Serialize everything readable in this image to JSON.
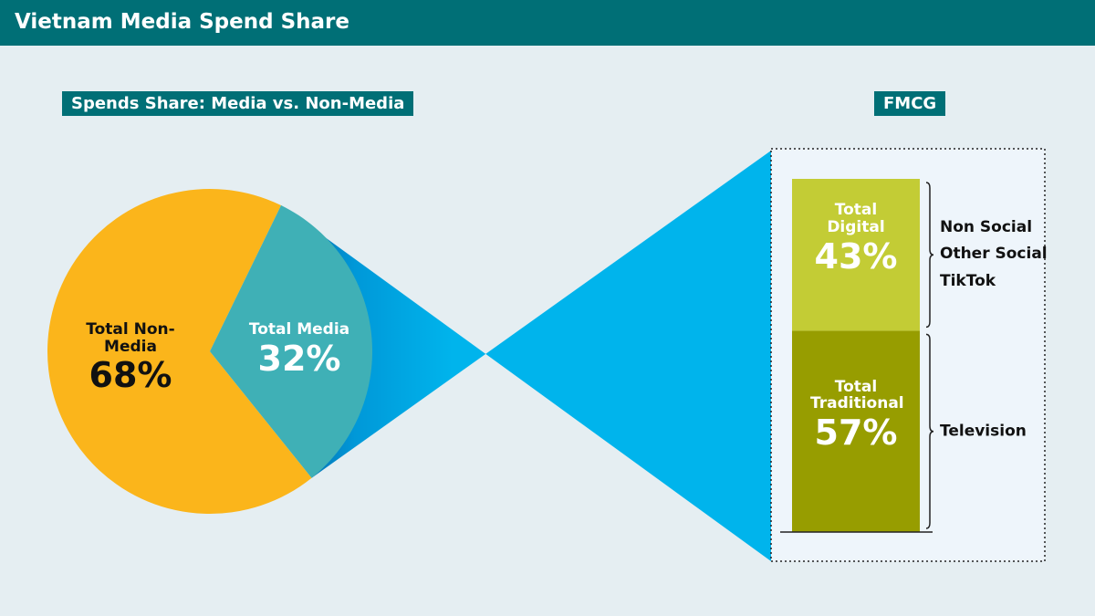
{
  "title": "Vietnam Media Spend Share",
  "chart_data": [
    {
      "type": "pie",
      "title": "Spends Share: Media vs. Non-Media",
      "categories": [
        "Total Non-Media",
        "Total Media"
      ],
      "values": [
        68,
        32
      ],
      "value_labels": [
        "68%",
        "32%"
      ],
      "colors": [
        "#fbb51b",
        "#3fb0b6"
      ],
      "label_colors": [
        "#111111",
        "#ffffff"
      ]
    },
    {
      "type": "stacked-bar",
      "title": "FMCG",
      "ylim": [
        0,
        100
      ],
      "series": [
        {
          "name": "Total Traditional",
          "color": "#979d00",
          "values": [
            57
          ],
          "value_labels": [
            "57%"
          ],
          "breakdown": [
            "Television"
          ]
        },
        {
          "name": "Total Digital",
          "color": "#c3cc35",
          "values": [
            43
          ],
          "value_labels": [
            "43%"
          ],
          "breakdown": [
            "Non Social",
            "Other Social",
            "TikTok"
          ]
        }
      ]
    }
  ]
}
